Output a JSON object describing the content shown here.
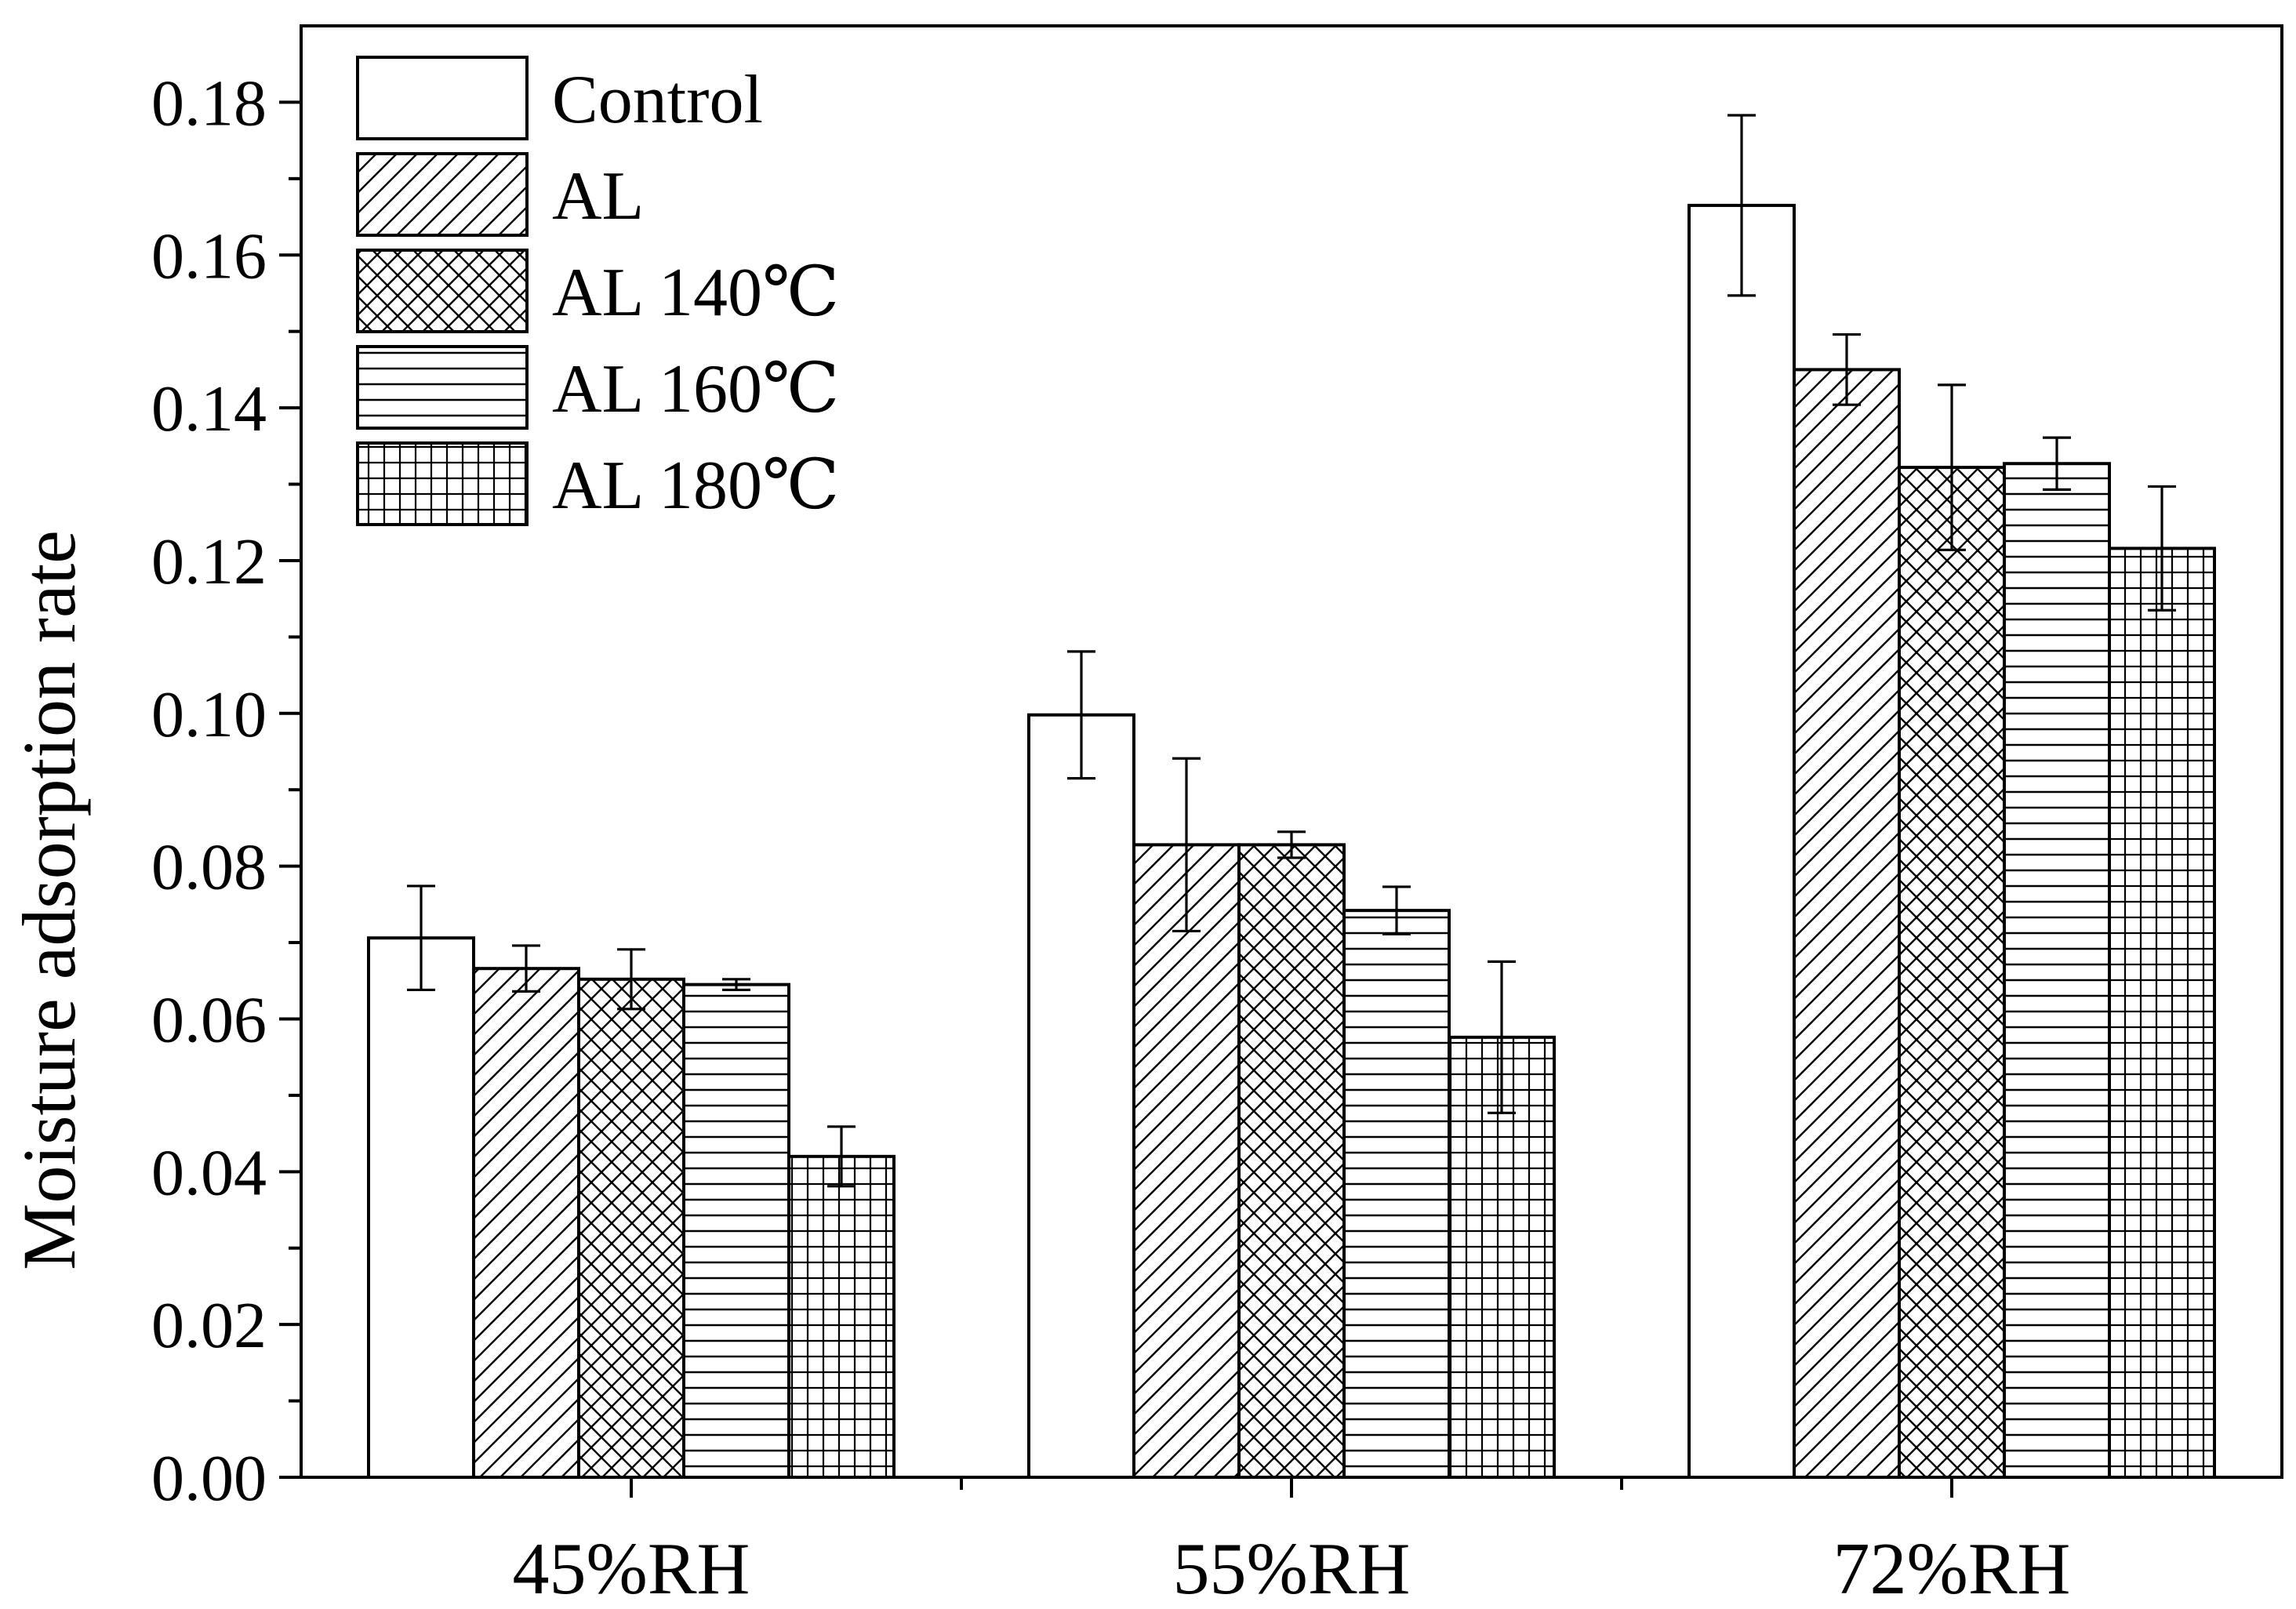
{
  "chart_data": {
    "type": "bar",
    "title": "",
    "xlabel": "",
    "ylabel": "Moisture adsorption rate",
    "ylim": [
      0,
      0.19
    ],
    "yticks": [
      "0.00",
      "0.02",
      "0.04",
      "0.06",
      "0.08",
      "0.10",
      "0.12",
      "0.14",
      "0.16",
      "0.18"
    ],
    "ytick_values": [
      0,
      0.02,
      0.04,
      0.06,
      0.08,
      0.1,
      0.12,
      0.14,
      0.16,
      0.18
    ],
    "categories": [
      "45%RH",
      "55%RH",
      "72%RH"
    ],
    "legend_position": "top-left",
    "series": [
      {
        "name": "Control",
        "pattern": "none",
        "values": [
          0.0706,
          0.0998,
          0.1665
        ],
        "errors": [
          0.0068,
          0.0083,
          0.0118
        ]
      },
      {
        "name": "AL",
        "pattern": "diagonal",
        "values": [
          0.0666,
          0.0828,
          0.145
        ],
        "errors": [
          0.003,
          0.0113,
          0.0046
        ]
      },
      {
        "name": "AL 140℃",
        "pattern": "crosshatch",
        "values": [
          0.0652,
          0.0828,
          0.1322
        ],
        "errors": [
          0.0039,
          0.0017,
          0.0108
        ]
      },
      {
        "name": "AL 160℃",
        "pattern": "horizontal",
        "values": [
          0.0645,
          0.0742,
          0.1327
        ],
        "errors": [
          0.0007,
          0.0031,
          0.0034
        ]
      },
      {
        "name": "AL 180℃",
        "pattern": "grid",
        "values": [
          0.042,
          0.0576,
          0.1216
        ],
        "errors": [
          0.0039,
          0.0099,
          0.0081
        ]
      }
    ]
  }
}
